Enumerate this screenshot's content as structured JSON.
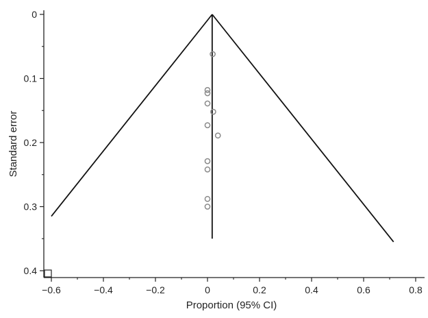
{
  "chart_data": {
    "type": "scatter",
    "title": "",
    "xlabel": "Proportion (95% CI)",
    "ylabel": "Standard error",
    "xlim": [
      -0.62,
      0.82
    ],
    "ylim": [
      0,
      0.4
    ],
    "y_inverted": true,
    "grid": false,
    "legend": "none",
    "x_ticks": [
      {
        "value": -0.6,
        "label": "−0.6"
      },
      {
        "value": -0.4,
        "label": "−0.4"
      },
      {
        "value": -0.2,
        "label": "−0.2"
      },
      {
        "value": 0,
        "label": "0"
      },
      {
        "value": 0.2,
        "label": "0.2"
      },
      {
        "value": 0.4,
        "label": "0.4"
      },
      {
        "value": 0.6,
        "label": "0.6"
      },
      {
        "value": 0.8,
        "label": "0.8"
      }
    ],
    "x_minor_ticks": [
      -0.5,
      -0.3,
      -0.1,
      0.1,
      0.3,
      0.5,
      0.7
    ],
    "y_ticks": [
      {
        "value": 0,
        "label": "0"
      },
      {
        "value": 0.1,
        "label": "0.1"
      },
      {
        "value": 0.2,
        "label": "0.2"
      },
      {
        "value": 0.3,
        "label": "0.3"
      },
      {
        "value": 0.4,
        "label": "0.4"
      }
    ],
    "y_minor_ticks": [
      0.05,
      0.15,
      0.25,
      0.35
    ],
    "pooled_estimate": 0.018,
    "funnel": {
      "apex": {
        "x": 0.018,
        "y": 0
      },
      "left_end": {
        "x": -0.6,
        "y": 0.315
      },
      "right_end": {
        "x": 0.715,
        "y": 0.355
      }
    },
    "center_line": {
      "x": 0.018,
      "y_from": 0,
      "y_to": 0.35
    },
    "points": [
      {
        "x": 0.02,
        "y": 0.062
      },
      {
        "x": 0.0,
        "y": 0.118
      },
      {
        "x": 0.0,
        "y": 0.123
      },
      {
        "x": 0.0,
        "y": 0.139
      },
      {
        "x": 0.022,
        "y": 0.152
      },
      {
        "x": 0.0,
        "y": 0.173
      },
      {
        "x": 0.04,
        "y": 0.189
      },
      {
        "x": 0.0,
        "y": 0.229
      },
      {
        "x": 0.0,
        "y": 0.242
      },
      {
        "x": 0.0,
        "y": 0.288
      },
      {
        "x": 0.0,
        "y": 0.3
      }
    ],
    "colors": {
      "axis": "#222222",
      "line": "#111111",
      "point": "#8a8a8a"
    }
  }
}
